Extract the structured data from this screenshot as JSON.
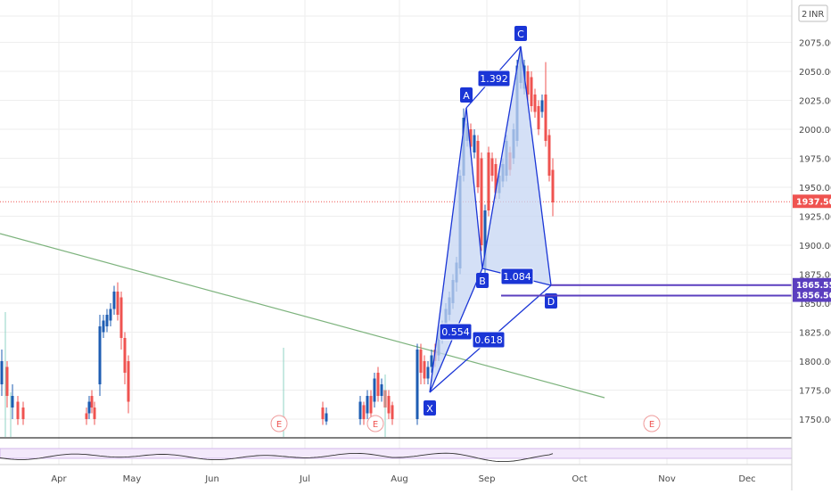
{
  "chart_data": {
    "type": "candlestick",
    "currency_label": "INR",
    "y_axis": {
      "ticks": [
        1750,
        1775,
        1800,
        1825,
        1850,
        1875,
        1900,
        1925,
        1950,
        1975,
        2000,
        2025,
        2050,
        2075
      ],
      "tick_labels": [
        "1750.00",
        "1775.00",
        "1800.00",
        "1825.00",
        "1850.00",
        "1875.00",
        "1900.00",
        "1925.00",
        "1950.00",
        "1975.00",
        "2000.00",
        "2025.00",
        "2050.00",
        "2075.00"
      ],
      "top_label": "2"
    },
    "x_axis": {
      "month_labels": [
        "Apr",
        "May",
        "Jun",
        "Jul",
        "Aug",
        "Sep",
        "Oct",
        "Nov",
        "Dec"
      ]
    },
    "price_labels": [
      {
        "value": 1937.5,
        "text": "1937.50",
        "color": "#ef5350"
      },
      {
        "value": 1865.55,
        "text": "1865.55",
        "color": "#5b3fbf"
      },
      {
        "value": 1856.5,
        "text": "1856.50",
        "color": "#5b3fbf"
      }
    ],
    "harmonic_pattern": {
      "points": [
        {
          "label": "X",
          "value": 1773
        },
        {
          "label": "A",
          "value": 2018
        },
        {
          "label": "B",
          "value": 1880
        },
        {
          "label": "C",
          "value": 2070
        },
        {
          "label": "D",
          "value": 1865
        }
      ],
      "ratios": [
        {
          "text": "1.392"
        },
        {
          "text": "0.554"
        },
        {
          "text": "1.084"
        },
        {
          "text": "0.618"
        }
      ]
    },
    "earnings_markers": [
      "E",
      "E",
      "E"
    ],
    "colors": {
      "up": "#1e5db3",
      "down": "#ef5350",
      "pattern": "#1a35d6",
      "pattern_fill": "#c5d5f3",
      "trendline": "#7db37d",
      "level": "#5b3fbf"
    }
  }
}
